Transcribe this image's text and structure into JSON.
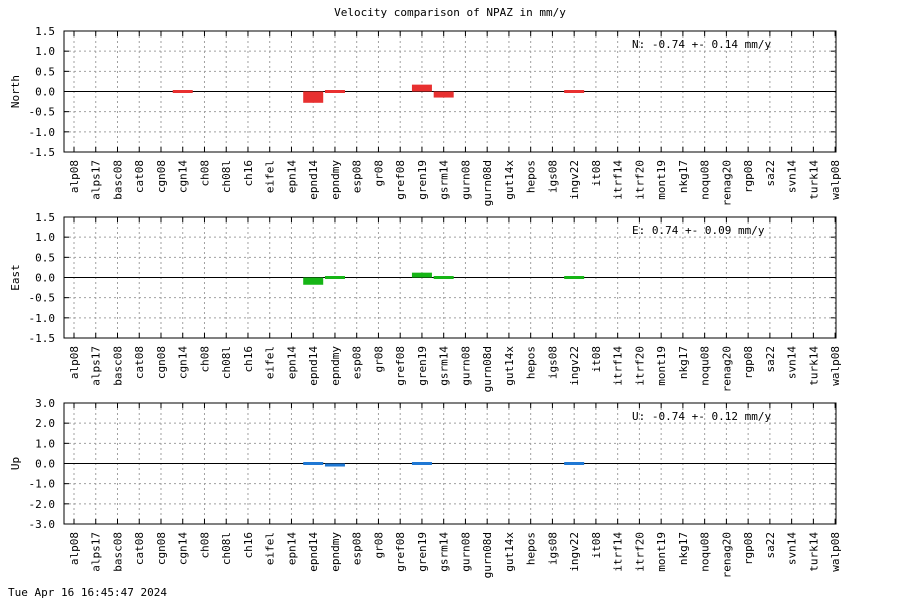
{
  "page_title": "Velocity comparison of NPAZ in mm/y",
  "timestamp": "Tue Apr 16 16:45:47 2024",
  "chart_data": [
    {
      "type": "bar",
      "ylabel": "North",
      "ylim": [
        -1.5,
        1.5
      ],
      "yticks": [
        "1.5",
        "1.0",
        "0.5",
        "0.0",
        "-0.5",
        "-1.0",
        "-1.5"
      ],
      "color": "#e83030",
      "annotation": "N:  -0.74 +-  0.14 mm/y",
      "grid": true,
      "categories": [
        "alp08",
        "alps17",
        "basc08",
        "cat08",
        "cgn08",
        "cgn14",
        "ch08",
        "ch08l",
        "ch16",
        "eifel",
        "epn14",
        "epnd14",
        "epndmy",
        "esp08",
        "gr08",
        "gref08",
        "gren19",
        "gsrm14",
        "gurn08",
        "gurn08d",
        "gut14x",
        "hepos",
        "igs08",
        "ingv22",
        "it08",
        "itrf14",
        "itrf20",
        "mont19",
        "nkg17",
        "noqu08",
        "renag20",
        "rgp08",
        "sa22",
        "svn14",
        "turk14",
        "walp08"
      ],
      "values": [
        null,
        null,
        null,
        null,
        null,
        -0.03,
        null,
        null,
        null,
        null,
        null,
        -0.28,
        0.0,
        null,
        null,
        null,
        0.17,
        -0.15,
        null,
        null,
        null,
        null,
        null,
        0.05,
        null,
        null,
        null,
        null,
        null,
        null,
        null,
        null,
        null,
        null,
        null,
        null
      ]
    },
    {
      "type": "bar",
      "ylabel": "East",
      "ylim": [
        -1.5,
        1.5
      ],
      "yticks": [
        "1.5",
        "1.0",
        "0.5",
        "0.0",
        "-0.5",
        "-1.0",
        "-1.5"
      ],
      "color": "#16b516",
      "annotation": "E:   0.74 +-  0.09 mm/y",
      "grid": true,
      "categories": [
        "alp08",
        "alps17",
        "basc08",
        "cat08",
        "cgn08",
        "cgn14",
        "ch08",
        "ch08l",
        "ch16",
        "eifel",
        "epn14",
        "epnd14",
        "epndmy",
        "esp08",
        "gr08",
        "gref08",
        "gren19",
        "gsrm14",
        "gurn08",
        "gurn08d",
        "gut14x",
        "hepos",
        "igs08",
        "ingv22",
        "it08",
        "itrf14",
        "itrf20",
        "mont19",
        "nkg17",
        "noqu08",
        "renag20",
        "rgp08",
        "sa22",
        "svn14",
        "turk14",
        "walp08"
      ],
      "values": [
        null,
        null,
        null,
        null,
        null,
        null,
        null,
        null,
        null,
        null,
        null,
        -0.18,
        0.02,
        null,
        null,
        null,
        0.12,
        -0.07,
        null,
        null,
        null,
        null,
        null,
        -0.02,
        null,
        null,
        null,
        null,
        null,
        null,
        null,
        null,
        null,
        null,
        null,
        null
      ]
    },
    {
      "type": "bar",
      "ylabel": "Up",
      "ylim": [
        -3.0,
        3.0
      ],
      "yticks": [
        "3.0",
        "2.0",
        "1.0",
        "0.0",
        "-1.0",
        "-2.0",
        "-3.0"
      ],
      "color": "#1f78d4",
      "annotation": "U:  -0.74 +-  0.12 mm/y",
      "grid": true,
      "categories": [
        "alp08",
        "alps17",
        "basc08",
        "cat08",
        "cgn08",
        "cgn14",
        "ch08",
        "ch08l",
        "ch16",
        "eifel",
        "epn14",
        "epnd14",
        "epndmy",
        "esp08",
        "gr08",
        "gref08",
        "gren19",
        "gsrm14",
        "gurn08",
        "gurn08d",
        "gut14x",
        "hepos",
        "igs08",
        "ingv22",
        "it08",
        "itrf14",
        "itrf20",
        "mont19",
        "nkg17",
        "noqu08",
        "renag20",
        "rgp08",
        "sa22",
        "svn14",
        "turk14",
        "walp08"
      ],
      "values": [
        null,
        null,
        null,
        null,
        null,
        null,
        null,
        null,
        null,
        null,
        null,
        0.08,
        -0.15,
        null,
        null,
        null,
        0.08,
        null,
        null,
        null,
        null,
        null,
        null,
        -0.1,
        null,
        null,
        null,
        null,
        null,
        null,
        null,
        null,
        null,
        null,
        null,
        null
      ]
    }
  ]
}
